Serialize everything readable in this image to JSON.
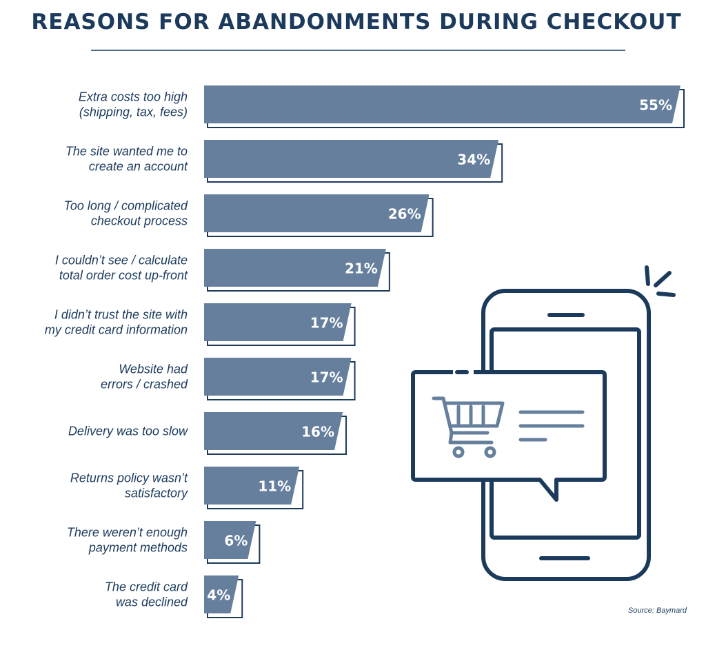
{
  "title": "REASONS FOR ABANDONMENTS DURING CHECKOUT",
  "source": "Source: Baymard",
  "colors": {
    "bar": "#657f9d",
    "outline": "#1b3a5c",
    "text": "#1b3a5c"
  },
  "illustration": {
    "icon": "smartphone-shopping-cart-icon"
  },
  "chart_data": {
    "type": "bar",
    "orientation": "horizontal",
    "categories": [
      [
        "Extra costs too high",
        "(shipping, tax, fees)"
      ],
      [
        "The site wanted me to",
        "create an account"
      ],
      [
        "Too long / complicated",
        "checkout process"
      ],
      [
        "I couldn’t see / calculate",
        "total order cost up-front"
      ],
      [
        "I didn’t trust the site with",
        "my credit card information"
      ],
      [
        "Website had",
        "errors / crashed"
      ],
      [
        "Delivery was too slow"
      ],
      [
        "Returns policy wasn’t",
        "satisfactory"
      ],
      [
        "There weren’t enough",
        "payment methods"
      ],
      [
        "The credit card",
        "was declined"
      ]
    ],
    "values": [
      55,
      34,
      26,
      21,
      17,
      17,
      16,
      11,
      6,
      4
    ],
    "value_labels": [
      "55%",
      "34%",
      "26%",
      "21%",
      "17%",
      "17%",
      "16%",
      "11%",
      "6%",
      "4%"
    ],
    "xlim": [
      0,
      55
    ],
    "grid": false,
    "legend": "none"
  }
}
